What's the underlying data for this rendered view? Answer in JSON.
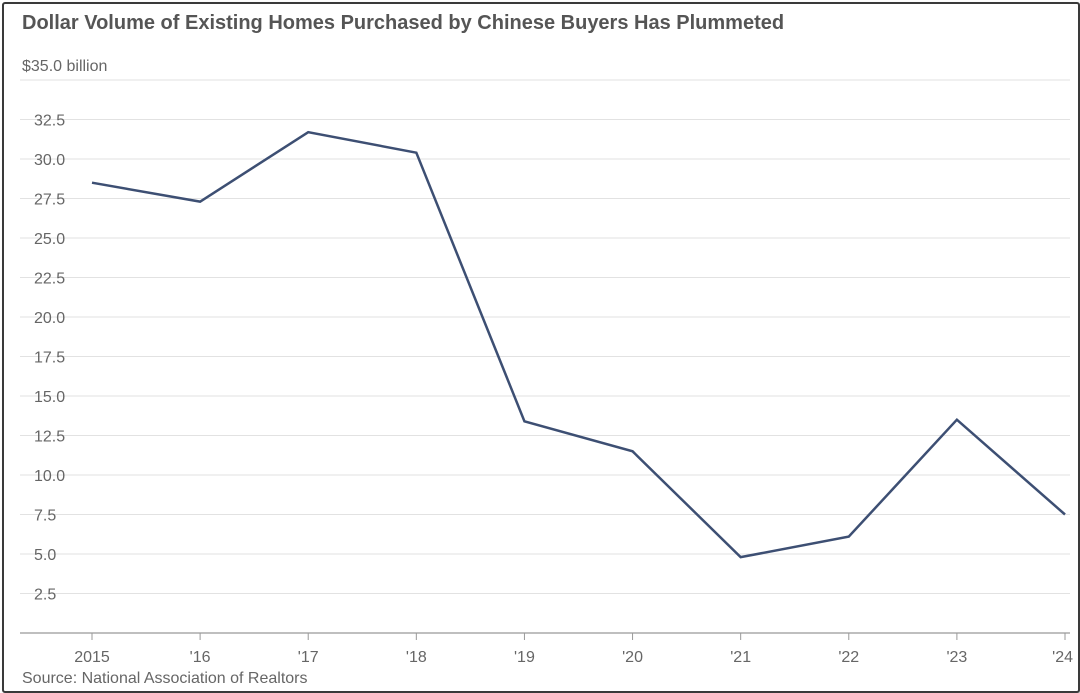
{
  "chart_data": {
    "type": "line",
    "title": "Dollar Volume of Existing Homes Purchased by Chinese Buyers Has Plummeted",
    "ylabel": "$35.0 billion",
    "xlabel": "",
    "source": "Source: National Association of Realtors",
    "categories": [
      "2015",
      "'16",
      "'17",
      "'18",
      "'19",
      "'20",
      "'21",
      "'22",
      "'23",
      "'24"
    ],
    "y_ticks": [
      "2.5",
      "5.0",
      "7.5",
      "10.0",
      "12.5",
      "15.0",
      "17.5",
      "20.0",
      "22.5",
      "25.0",
      "27.5",
      "30.0",
      "32.5"
    ],
    "y_tick_values": [
      2.5,
      5.0,
      7.5,
      10.0,
      12.5,
      15.0,
      17.5,
      20.0,
      22.5,
      25.0,
      27.5,
      30.0,
      32.5,
      35.0
    ],
    "ylim": [
      0,
      35
    ],
    "series": [
      {
        "values": [
          28.5,
          27.3,
          31.7,
          30.4,
          13.4,
          11.5,
          4.8,
          6.1,
          13.5,
          7.5
        ]
      }
    ],
    "grid": true,
    "colors": {
      "line": "#3d4f73",
      "grid": "#e2e2e2",
      "axis": "#999999"
    }
  }
}
